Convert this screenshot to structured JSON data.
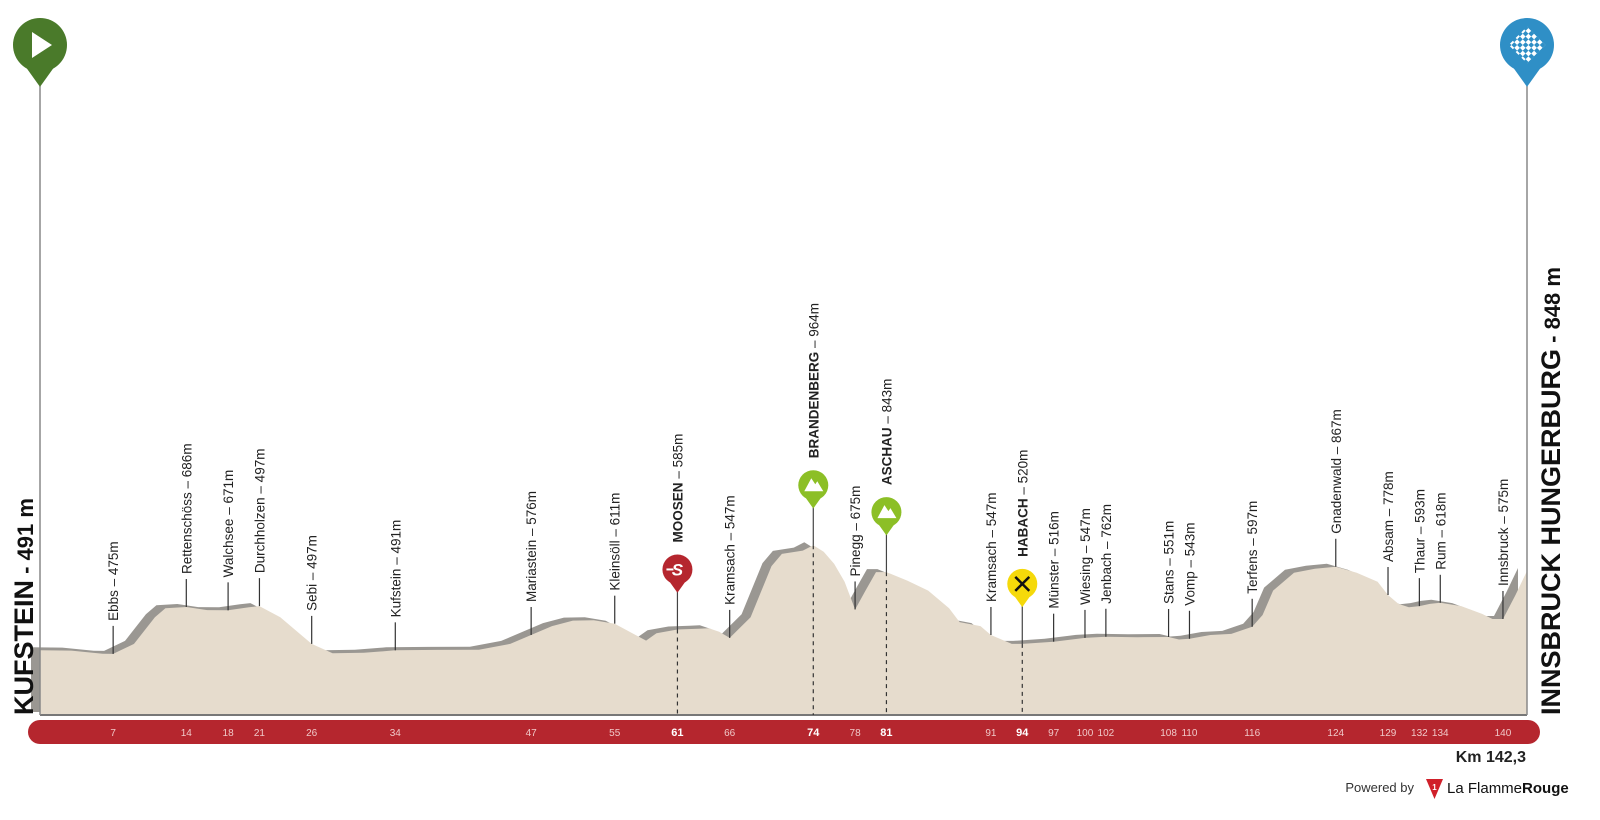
{
  "chart_data": {
    "type": "area",
    "title": "",
    "start": {
      "name": "KUFSTEIN",
      "elevation_label": " - 491 m",
      "icon": "play-icon",
      "color": "#4a7a2a"
    },
    "finish": {
      "name": "INNSBRUCK HUNGERBURG",
      "elevation_label": " - 848 m",
      "icon": "checkered-flag-icon",
      "color": "#2f8fc6"
    },
    "total_distance_label": "Km 142,3",
    "xlim": [
      0,
      142.3
    ],
    "ylim": [
      200,
      1000
    ],
    "colors": {
      "terrain": "#e6dccd",
      "shadow": "#9a9792",
      "axis_bar": "#b5262e",
      "sprint": "#b5262e",
      "climb": "#8cbf26",
      "feed": "#f5d90a"
    },
    "profile": [
      [
        0,
        491
      ],
      [
        3,
        490
      ],
      [
        6,
        476
      ],
      [
        7,
        475
      ],
      [
        9,
        520
      ],
      [
        11,
        640
      ],
      [
        12,
        680
      ],
      [
        14,
        686
      ],
      [
        16,
        672
      ],
      [
        18,
        671
      ],
      [
        20,
        685
      ],
      [
        21,
        690
      ],
      [
        23,
        640
      ],
      [
        25,
        560
      ],
      [
        26,
        520
      ],
      [
        28,
        478
      ],
      [
        31,
        480
      ],
      [
        34,
        491
      ],
      [
        38,
        493
      ],
      [
        42,
        494
      ],
      [
        45,
        520
      ],
      [
        47,
        560
      ],
      [
        49,
        600
      ],
      [
        51,
        625
      ],
      [
        53,
        626
      ],
      [
        55,
        611
      ],
      [
        57,
        560
      ],
      [
        58,
        535
      ],
      [
        59,
        568
      ],
      [
        61,
        585
      ],
      [
        63,
        588
      ],
      [
        64,
        590
      ],
      [
        65,
        575
      ],
      [
        66,
        547
      ],
      [
        68,
        640
      ],
      [
        70,
        870
      ],
      [
        71,
        925
      ],
      [
        73,
        940
      ],
      [
        74,
        964
      ],
      [
        75,
        935
      ],
      [
        76,
        880
      ],
      [
        77,
        800
      ],
      [
        78,
        675
      ],
      [
        79,
        760
      ],
      [
        80,
        843
      ],
      [
        81,
        843
      ],
      [
        83,
        805
      ],
      [
        85,
        760
      ],
      [
        87,
        680
      ],
      [
        88,
        618
      ],
      [
        90,
        600
      ],
      [
        91,
        560
      ],
      [
        93,
        520
      ],
      [
        94,
        520
      ],
      [
        97,
        530
      ],
      [
        100,
        547
      ],
      [
        102,
        552
      ],
      [
        105,
        550
      ],
      [
        108,
        551
      ],
      [
        109,
        540
      ],
      [
        110,
        543
      ],
      [
        112,
        560
      ],
      [
        114,
        565
      ],
      [
        116,
        597
      ],
      [
        117,
        650
      ],
      [
        118,
        760
      ],
      [
        120,
        840
      ],
      [
        122,
        858
      ],
      [
        124,
        867
      ],
      [
        126,
        840
      ],
      [
        128,
        800
      ],
      [
        129,
        740
      ],
      [
        130,
        700
      ],
      [
        131,
        685
      ],
      [
        132,
        690
      ],
      [
        133,
        700
      ],
      [
        134,
        705
      ],
      [
        136,
        690
      ],
      [
        138,
        655
      ],
      [
        139,
        632
      ],
      [
        140,
        632
      ],
      [
        141.2,
        740
      ],
      [
        142.3,
        848
      ]
    ],
    "waypoints": [
      {
        "km": 7,
        "name": "Ebbs",
        "elev": " – 475m",
        "bold": false
      },
      {
        "km": 14,
        "name": "Rettenschöss",
        "elev": " – 686m",
        "bold": false
      },
      {
        "km": 18,
        "name": "Walchsee",
        "elev": " – 671m",
        "bold": false
      },
      {
        "km": 21,
        "name": "Durchholzen",
        "elev": " – 497m",
        "bold": false
      },
      {
        "km": 26,
        "name": "Sebi",
        "elev": " – 497m",
        "bold": false
      },
      {
        "km": 34,
        "name": "Kufstein",
        "elev": " – 491m",
        "bold": false
      },
      {
        "km": 47,
        "name": "Mariastein",
        "elev": " – 576m",
        "bold": false
      },
      {
        "km": 55,
        "name": "Kleinsöll",
        "elev": " – 611m",
        "bold": false
      },
      {
        "km": 61,
        "name": "MOOSEN",
        "elev": " – 585m",
        "bold": true,
        "marker": "sprint",
        "icon": "sprint-icon"
      },
      {
        "km": 66,
        "name": "Kramsach",
        "elev": " – 547m",
        "bold": false
      },
      {
        "km": 74,
        "name": "BRANDENBERG",
        "elev": " – 964m",
        "bold": true,
        "marker": "climb",
        "icon": "mountain-icon"
      },
      {
        "km": 78,
        "name": "Pinegg",
        "elev": " – 675m",
        "bold": false
      },
      {
        "km": 81,
        "name": "ASCHAU",
        "elev": " – 843m",
        "bold": true,
        "marker": "climb",
        "icon": "mountain-icon"
      },
      {
        "km": 91,
        "name": "Kramsach",
        "elev": " – 547m",
        "bold": false
      },
      {
        "km": 94,
        "name": "HABACH",
        "elev": " – 520m",
        "bold": true,
        "marker": "feed",
        "icon": "fork-knife-icon"
      },
      {
        "km": 97,
        "name": "Münster",
        "elev": " – 516m",
        "bold": false
      },
      {
        "km": 100,
        "name": "Wiesing",
        "elev": " – 547m",
        "bold": false
      },
      {
        "km": 102,
        "name": "Jenbach",
        "elev": " – 762m",
        "bold": false
      },
      {
        "km": 108,
        "name": "Stans",
        "elev": " – 551m",
        "bold": false
      },
      {
        "km": 110,
        "name": "Vomp",
        "elev": " – 543m",
        "bold": false
      },
      {
        "km": 116,
        "name": "Terfens",
        "elev": " – 597m",
        "bold": false
      },
      {
        "km": 124,
        "name": "Gnadenwald",
        "elev": " – 867m",
        "bold": false
      },
      {
        "km": 129,
        "name": "Absam",
        "elev": " – 778m",
        "bold": false
      },
      {
        "km": 132,
        "name": "Thaur",
        "elev": " – 593m",
        "bold": false
      },
      {
        "km": 134,
        "name": "Rum",
        "elev": " – 618m",
        "bold": false
      },
      {
        "km": 140,
        "name": "Innsbruck",
        "elev": " – 575m",
        "bold": false
      }
    ],
    "km_ticks": [
      {
        "km": 7,
        "label": "7"
      },
      {
        "km": 14,
        "label": "14"
      },
      {
        "km": 18,
        "label": "18"
      },
      {
        "km": 21,
        "label": "21"
      },
      {
        "km": 26,
        "label": "26"
      },
      {
        "km": 34,
        "label": "34"
      },
      {
        "km": 47,
        "label": "47"
      },
      {
        "km": 55,
        "label": "55"
      },
      {
        "km": 61,
        "label": "61",
        "bold": true
      },
      {
        "km": 66,
        "label": "66"
      },
      {
        "km": 74,
        "label": "74",
        "bold": true
      },
      {
        "km": 78,
        "label": "78"
      },
      {
        "km": 81,
        "label": "81",
        "bold": true
      },
      {
        "km": 91,
        "label": "91"
      },
      {
        "km": 94,
        "label": "94",
        "bold": true
      },
      {
        "km": 97,
        "label": "97"
      },
      {
        "km": 100,
        "label": "100"
      },
      {
        "km": 102,
        "label": "102"
      },
      {
        "km": 108,
        "label": "108"
      },
      {
        "km": 110,
        "label": "110"
      },
      {
        "km": 116,
        "label": "116"
      },
      {
        "km": 124,
        "label": "124"
      },
      {
        "km": 129,
        "label": "129"
      },
      {
        "km": 132,
        "label": "132"
      },
      {
        "km": 134,
        "label": "134"
      },
      {
        "km": 140,
        "label": "140"
      }
    ]
  },
  "footer": {
    "powered_by": "Powered by",
    "brand_a": "La Flamme",
    "brand_b": "Rouge"
  }
}
